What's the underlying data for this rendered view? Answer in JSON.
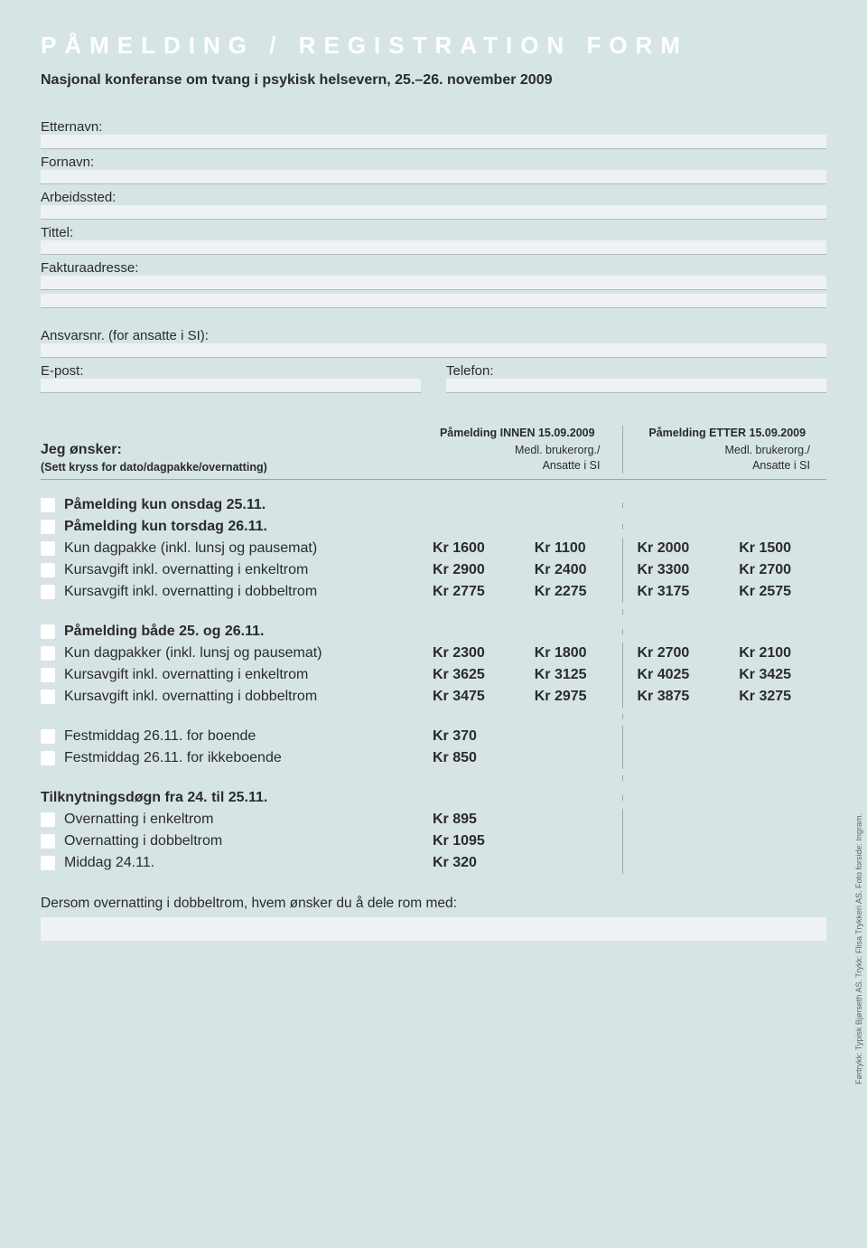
{
  "title": "PÅMELDING / REGISTRATION FORM",
  "subtitle": "Nasjonal konferanse om tvang i psykisk helsevern, 25.–26. november 2009",
  "fields": {
    "etternavn": "Etternavn:",
    "fornavn": "Fornavn:",
    "arbeidssted": "Arbeidssted:",
    "tittel": "Tittel:",
    "fakturaadresse": "Fakturaadresse:",
    "ansvarsnr": "Ansvarsnr. (for ansatte i SI):",
    "epost": "E-post:",
    "telefon": "Telefon:"
  },
  "onsker_label": "Jeg ønsker:",
  "onsker_sub": "(Sett kryss for dato/dagpakke/overnatting)",
  "col_innen_title": "Påmelding INNEN 15.09.2009",
  "col_etter_title": "Påmelding ETTER 15.09.2009",
  "col_sub": "Medl. brukerorg./\nAnsatte i SI",
  "rows1": [
    {
      "label": "Påmelding kun onsdag 25.11.",
      "bold": true
    },
    {
      "label": "Påmelding kun torsdag 26.11.",
      "bold": true
    },
    {
      "label": "Kun dagpakke (inkl. lunsj og pausemat)",
      "p": [
        "Kr 1600",
        "Kr 1100",
        "Kr 2000",
        "Kr 1500"
      ]
    },
    {
      "label": "Kursavgift inkl. overnatting i enkeltrom",
      "p": [
        "Kr 2900",
        "Kr 2400",
        "Kr 3300",
        "Kr 2700"
      ]
    },
    {
      "label": "Kursavgift inkl. overnatting i dobbeltrom",
      "p": [
        "Kr 2775",
        "Kr 2275",
        "Kr 3175",
        "Kr 2575"
      ]
    }
  ],
  "rows2": [
    {
      "label": "Påmelding både 25. og 26.11.",
      "bold": true
    },
    {
      "label": "Kun dagpakker (inkl. lunsj og pausemat)",
      "p": [
        "Kr 2300",
        "Kr 1800",
        "Kr 2700",
        "Kr 2100"
      ]
    },
    {
      "label": "Kursavgift inkl. overnatting i enkeltrom",
      "p": [
        "Kr 3625",
        "Kr 3125",
        "Kr 4025",
        "Kr 3425"
      ]
    },
    {
      "label": "Kursavgift inkl. overnatting i dobbeltrom",
      "p": [
        "Kr 3475",
        "Kr 2975",
        "Kr 3875",
        "Kr 3275"
      ]
    }
  ],
  "rows3": [
    {
      "label": "Festmiddag 26.11. for boende",
      "p": [
        "Kr  370",
        "",
        "",
        ""
      ]
    },
    {
      "label": "Festmiddag 26.11. for ikkeboende",
      "p": [
        "Kr  850",
        "",
        "",
        ""
      ]
    }
  ],
  "tilknytning_heading": "Tilknytningsdøgn fra 24. til 25.11.",
  "rows4": [
    {
      "label": "Overnatting i enkeltrom",
      "p": [
        "Kr  895",
        "",
        "",
        ""
      ]
    },
    {
      "label": "Overnatting i dobbeltrom",
      "p": [
        "Kr 1095",
        "",
        "",
        ""
      ]
    },
    {
      "label": "Middag 24.11.",
      "p": [
        "Kr  320",
        "",
        "",
        ""
      ]
    }
  ],
  "bottom_note": "Dersom overnatting i dobbeltrom, hvem ønsker du å dele rom med:",
  "credit": "Førtrykk: Typisk Bjørseth AS.  Trykk: Flisa Trykkeri AS.   Foto forside: Ingram."
}
